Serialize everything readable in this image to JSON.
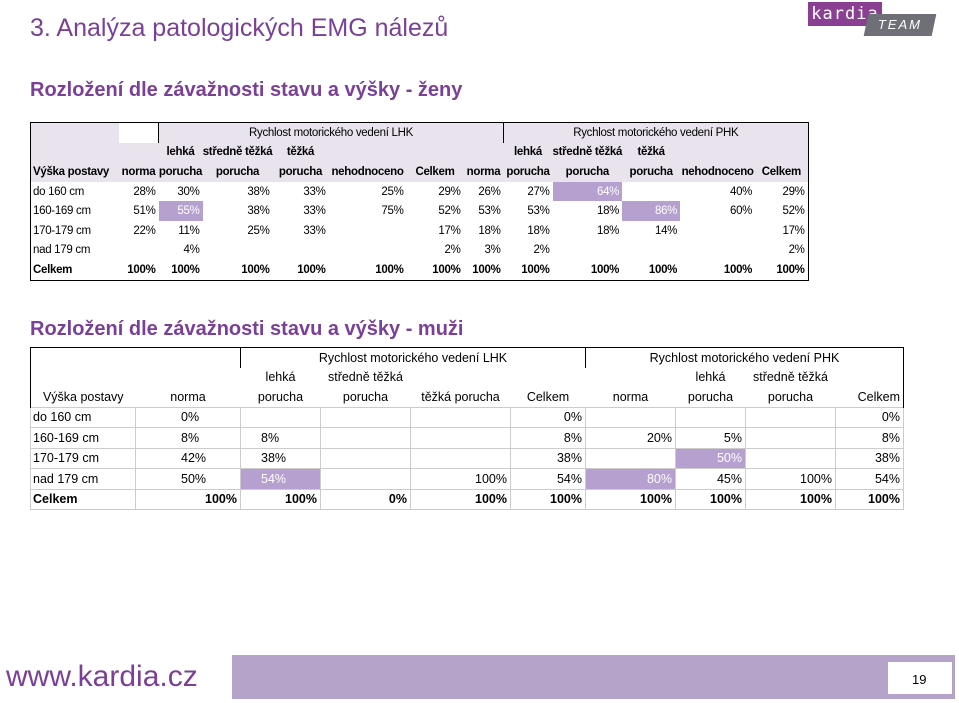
{
  "slide_title": "3. Analýza patologických EMG nálezů",
  "logo": {
    "brand": "kardia",
    "team": "TEAM"
  },
  "women": {
    "heading": "Rozložení dle závažnosti stavu a výšky - ženy",
    "group_lhk": "Rychlost motorického vedení LHK",
    "group_phk": "Rychlost motorického vedení PHK",
    "row_header": "Výška postavy",
    "cols": {
      "norma": "norma",
      "lehka_1": "lehká",
      "lehka_2": "porucha",
      "stredne_1": "středně těžká",
      "stredne_2": "porucha",
      "tezka_1": "těžká",
      "tezka_2": "porucha",
      "nehodnoceno": "nehodnoceno",
      "celkem": "Celkem"
    },
    "rows": [
      {
        "label": "do 160 cm",
        "v": [
          "28%",
          "30%",
          "38%",
          "33%",
          "25%",
          "29%",
          "26%",
          "27%",
          "64%",
          "",
          "40%",
          "29%"
        ]
      },
      {
        "label": "160-169 cm",
        "v": [
          "51%",
          "55%",
          "38%",
          "33%",
          "75%",
          "52%",
          "53%",
          "53%",
          "18%",
          "86%",
          "60%",
          "52%"
        ]
      },
      {
        "label": "170-179 cm",
        "v": [
          "22%",
          "11%",
          "25%",
          "33%",
          "",
          "17%",
          "18%",
          "18%",
          "18%",
          "14%",
          "",
          "17%"
        ]
      },
      {
        "label": "nad 179 cm",
        "v": [
          "",
          "4%",
          "",
          "",
          "",
          "2%",
          "3%",
          "2%",
          "",
          "",
          "",
          "2%"
        ]
      },
      {
        "label": "Celkem",
        "v": [
          "100%",
          "100%",
          "100%",
          "100%",
          "100%",
          "100%",
          "100%",
          "100%",
          "100%",
          "100%",
          "100%",
          "100%"
        ]
      }
    ]
  },
  "men": {
    "heading": "Rozložení dle závažnosti stavu a výšky - muži",
    "group_lhk": "Rychlost motorického vedení LHK",
    "group_phk": "Rychlost motorického vedení PHK",
    "row_header": "Výška postavy",
    "cols": {
      "norma": "norma",
      "lehka_1": "lehká",
      "lehka_2": "porucha",
      "stredne_1": "středně těžká",
      "stredne_2": "porucha",
      "tezka": "těžká porucha",
      "celkem": "Celkem"
    },
    "rows": [
      {
        "label": "do 160 cm",
        "v": [
          "0%",
          "",
          "",
          "",
          "0%",
          "",
          "",
          "",
          "0%"
        ]
      },
      {
        "label": "160-169 cm",
        "v": [
          "8%",
          "8%",
          "",
          "",
          "8%",
          "20%",
          "5%",
          "",
          "8%"
        ]
      },
      {
        "label": "170-179 cm",
        "v": [
          "42%",
          "38%",
          "",
          "",
          "38%",
          "",
          "50%",
          "",
          "38%"
        ]
      },
      {
        "label": "nad 179 cm",
        "v": [
          "50%",
          "54%",
          "",
          "100%",
          "54%",
          "80%",
          "45%",
          "100%",
          "54%"
        ]
      },
      {
        "label": "Celkem",
        "v": [
          "100%",
          "100%",
          "0%",
          "100%",
          "100%",
          "100%",
          "100%",
          "100%",
          "100%"
        ]
      }
    ]
  },
  "footer": {
    "website": "www.kardia.cz",
    "page_number": "19"
  },
  "colors": {
    "accent": "#7b3f98",
    "header_bg": "#e9e3ee",
    "highlight": "#b5a0cf",
    "footer_bar": "#b6a3c9"
  }
}
